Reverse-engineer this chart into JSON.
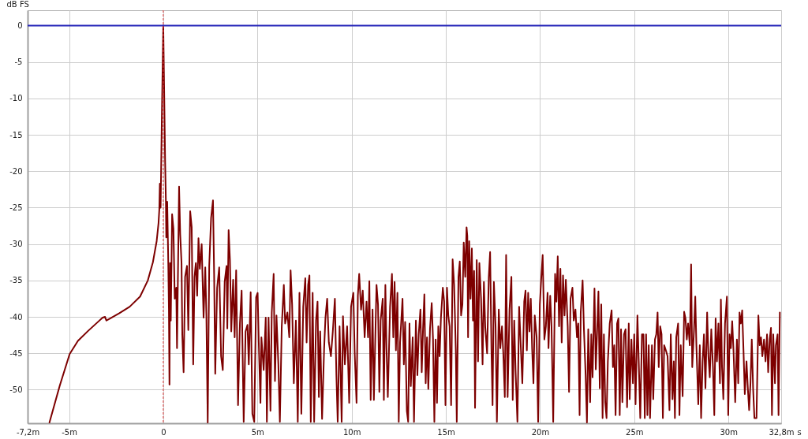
{
  "chart_data": {
    "type": "line",
    "xlabel": "s",
    "ylabel": "dB FS",
    "xlim": [
      -7.2,
      32.8
    ],
    "xticks": [
      {
        "value": -7.2,
        "label": "-7,2m"
      },
      {
        "value": -5,
        "label": "-5m"
      },
      0,
      {
        "value": 5,
        "label": "5m"
      },
      {
        "value": 10,
        "label": "10m"
      },
      {
        "value": 15,
        "label": "15m"
      },
      {
        "value": 20,
        "label": "20m"
      },
      {
        "value": 25,
        "label": "25m"
      },
      {
        "value": 30,
        "label": "30m"
      },
      {
        "value": 32.8,
        "label": "32,8m"
      }
    ],
    "ylim": [
      -54.6,
      2.1
    ],
    "yticks": [
      0,
      -5,
      -10,
      -15,
      -20,
      -25,
      -30,
      -35,
      -40,
      -45,
      -50
    ],
    "grid": true,
    "ref_lines": [
      {
        "axis": "y",
        "value": 0,
        "color": "#2323b8"
      },
      {
        "axis": "x",
        "value": 0,
        "color": "#e03c3c",
        "line_style": "dashed"
      }
    ],
    "series": [
      {
        "color": "#7d0000",
        "x": [
          -6.04,
          -5.49,
          -4.97,
          -4.53,
          -3.98,
          -3.43,
          -3.22,
          -3.09,
          -3.02,
          -2.88,
          -2.33,
          -1.78,
          -1.23,
          -0.82,
          -0.55,
          -0.35,
          -0.25,
          -0.21,
          -0.18,
          -0.14,
          -0.11,
          -0.07,
          0,
          0.07,
          0.1,
          0.14,
          0.16,
          0.21,
          0.26,
          0.3,
          0.33,
          0.36,
          0.4,
          0.47,
          0.54,
          0.61,
          0.69,
          0.73,
          0.84,
          0.9,
          0.97,
          1.01,
          1.08,
          1.16,
          1.26,
          1.33,
          1.43,
          1.51,
          1.59,
          1.66,
          1.73,
          1.8,
          1.87,
          1.94,
          2.04,
          2.14,
          2.23,
          2.29,
          2.36,
          2.44,
          2.54,
          2.64,
          2.7,
          2.76,
          2.86,
          2.97,
          3.07,
          3.16,
          3.26,
          3.36,
          3.4,
          3.47,
          3.54,
          3.61,
          3.71,
          3.79,
          3.87,
          3.97,
          4.07,
          4.16,
          4.27,
          4.37,
          4.47,
          4.54,
          4.64,
          4.73,
          4.83,
          4.93,
          5.01,
          5.07,
          5.16,
          5.21,
          5.33,
          5.44,
          5.5,
          5.59,
          5.69,
          5.76,
          5.86,
          5.93,
          6.01,
          6.11,
          6.19,
          6.29,
          6.4,
          6.47,
          6.59,
          6.69,
          6.76,
          6.84,
          6.93,
          7.04,
          7.14,
          7.23,
          7.33,
          7.43,
          7.54,
          7.61,
          7.69,
          7.76,
          7.83,
          7.93,
          8.01,
          8.11,
          8.19,
          8.26,
          8.33,
          8.43,
          8.54,
          8.61,
          8.7,
          8.79,
          8.9,
          9,
          9.11,
          9.19,
          9.26,
          9.36,
          9.47,
          9.54,
          9.64,
          9.76,
          9.87,
          9.97,
          10.09,
          10.16,
          10.26,
          10.33,
          10.4,
          10.5,
          10.59,
          10.69,
          10.79,
          10.87,
          10.94,
          11.01,
          11.11,
          11.18,
          11.32,
          11.4,
          11.47,
          11.54,
          11.65,
          11.71,
          11.79,
          11.85,
          11.92,
          12.04,
          12.14,
          12.21,
          12.28,
          12.35,
          12.43,
          12.5,
          12.57,
          12.7,
          12.77,
          12.84,
          12.93,
          13,
          13.07,
          13.14,
          13.24,
          13.31,
          13.41,
          13.49,
          13.56,
          13.65,
          13.72,
          13.79,
          13.86,
          13.93,
          14,
          14.07,
          14.16,
          14.25,
          14.32,
          14.39,
          14.46,
          14.53,
          14.6,
          14.67,
          14.74,
          14.84,
          14.91,
          14.98,
          15.06,
          15.13,
          15.2,
          15.28,
          15.36,
          15.44,
          15.53,
          15.58,
          15.67,
          15.74,
          15.81,
          15.88,
          15.95,
          16.03,
          16.1,
          16.14,
          16.18,
          16.24,
          16.31,
          16.38,
          16.44,
          16.5,
          16.55,
          16.64,
          16.71,
          16.78,
          16.87,
          16.95,
          17.02,
          17.09,
          17.19,
          17.28,
          17.35,
          17.42,
          17.48,
          17.55,
          17.64,
          17.71,
          17.81,
          17.89,
          17.98,
          18.05,
          18.13,
          18.2,
          18.28,
          18.38,
          18.48,
          18.55,
          18.63,
          18.7,
          18.8,
          18.89,
          18.97,
          19.06,
          19.16,
          19.23,
          19.3,
          19.37,
          19.44,
          19.51,
          19.58,
          19.65,
          19.72,
          19.82,
          19.9,
          19.99,
          20.06,
          20.14,
          20.23,
          20.31,
          20.4,
          20.45,
          20.54,
          20.61,
          20.7,
          20.8,
          20.87,
          20.94,
          21.01,
          21.08,
          21.15,
          21.22,
          21.3,
          21.37,
          21.47,
          21.54,
          21.62,
          21.72,
          21.79,
          21.88,
          21.96,
          22.03,
          22.1,
          22.16,
          22.26,
          22.33,
          22.42,
          22.49,
          22.56,
          22.66,
          22.72,
          22.79,
          22.89,
          22.96,
          23.03,
          23.1,
          23.17,
          23.25,
          23.32,
          23.39,
          23.46,
          23.53,
          23.6,
          23.7,
          23.8,
          23.87,
          23.94,
          24.01,
          24.09,
          24.16,
          24.23,
          24.3,
          24.37,
          24.46,
          24.54,
          24.62,
          24.71,
          24.76,
          24.85,
          24.93,
          25,
          25.07,
          25.17,
          25.24,
          25.32,
          25.41,
          25.49,
          25.56,
          25.63,
          25.7,
          25.77,
          25.84,
          25.94,
          26.01,
          26.1,
          26.17,
          26.24,
          26.3,
          26.38,
          26.45,
          26.52,
          26.59,
          26.68,
          26.77,
          26.87,
          26.94,
          27.03,
          27.1,
          27.16,
          27.23,
          27.33,
          27.4,
          27.47,
          27.57,
          27.65,
          27.72,
          27.79,
          27.86,
          27.95,
          28.02,
          28.08,
          28.17,
          28.24,
          28.3,
          28.4,
          28.48,
          28.55,
          28.63,
          28.7,
          28.78,
          28.87,
          28.94,
          29.01,
          29.09,
          29.18,
          29.25,
          29.32,
          29.39,
          29.47,
          29.55,
          29.6,
          29.66,
          29.73,
          29.82,
          29.92,
          29.99,
          30.06,
          30.13,
          30.2,
          30.27,
          30.36,
          30.45,
          30.52,
          30.59,
          30.66,
          30.73,
          30.8,
          30.87,
          30.96,
          31.03,
          31.1,
          31.17,
          31.24,
          31.31,
          31.38,
          31.49,
          31.59,
          31.66,
          31.73,
          31.8,
          31.89,
          31.97,
          32.05,
          32.11,
          32.19,
          32.26,
          32.31,
          32.38,
          32.47,
          32.52,
          32.61,
          32.66,
          32.73
        ],
        "values": [
          -54.5,
          -49.4,
          -45.1,
          -43.3,
          -41.9,
          -40.6,
          -40.1,
          -40.0,
          -40.5,
          -40.3,
          -39.5,
          -38.6,
          -37.2,
          -35.0,
          -32.5,
          -29.6,
          -27.1,
          -25.3,
          -21.7,
          -25.0,
          -19.2,
          -11.8,
          0,
          -13.1,
          -18.8,
          -24.2,
          -29.1,
          -24.2,
          -31.5,
          -39.0,
          -49.3,
          -32.6,
          -40.5,
          -25.9,
          -27.9,
          -37.5,
          -36.0,
          -44.3,
          -22.1,
          -28.7,
          -32.6,
          -42.4,
          -47.6,
          -34.5,
          -33.0,
          -41.8,
          -25.5,
          -27.7,
          -46.5,
          -34.5,
          -32.6,
          -37.1,
          -29.2,
          -33.4,
          -30.0,
          -40.1,
          -33.2,
          -39.8,
          -54.5,
          -33.0,
          -26.4,
          -24.0,
          -34.1,
          -47.8,
          -36.0,
          -33.2,
          -45.4,
          -47.3,
          -35.2,
          -33.0,
          -41.6,
          -28.1,
          -32.2,
          -42.0,
          -34.9,
          -42.8,
          -33.6,
          -52.1,
          -40.9,
          -36.4,
          -54.4,
          -42.0,
          -41.1,
          -46.5,
          -36.6,
          -53.3,
          -54.4,
          -37.3,
          -36.7,
          -43.5,
          -51.8,
          -42.8,
          -47.3,
          -40.1,
          -54.4,
          -40.1,
          -52.9,
          -39.4,
          -34.1,
          -48.8,
          -39.8,
          -46.5,
          -54.4,
          -41.3,
          -35.6,
          -40.9,
          -39.4,
          -42.8,
          -33.6,
          -38.3,
          -49.1,
          -40.5,
          -54.4,
          -36.7,
          -53.3,
          -38.6,
          -34.7,
          -43.5,
          -35.6,
          -34.3,
          -54.4,
          -36.7,
          -54.4,
          -40.5,
          -37.9,
          -51.0,
          -42.0,
          -54.0,
          -44.3,
          -40.1,
          -37.5,
          -43.5,
          -45.4,
          -42.0,
          -37.5,
          -48.0,
          -54.4,
          -41.3,
          -54.4,
          -39.9,
          -46.5,
          -41.3,
          -51.8,
          -38.6,
          -36.7,
          -44.8,
          -51.8,
          -37.1,
          -34.1,
          -39.0,
          -36.4,
          -42.8,
          -37.9,
          -42.8,
          -35.1,
          -51.4,
          -39.0,
          -51.4,
          -35.6,
          -38.3,
          -50.3,
          -40.5,
          -37.5,
          -51.4,
          -35.6,
          -44.3,
          -51.0,
          -38.6,
          -34.1,
          -42.8,
          -35.2,
          -44.6,
          -36.7,
          -54.4,
          -43.5,
          -37.5,
          -46.5,
          -40.7,
          -52.9,
          -54.4,
          -40.9,
          -49.5,
          -42.8,
          -54.4,
          -40.5,
          -48.0,
          -42.4,
          -39.0,
          -47.6,
          -41.6,
          -36.9,
          -49.1,
          -42.8,
          -49.9,
          -41.6,
          -38.1,
          -43.1,
          -54.4,
          -43.1,
          -51.8,
          -41.3,
          -45.4,
          -40.1,
          -36.0,
          -37.9,
          -52.1,
          -36.0,
          -39.8,
          -41.3,
          -52.1,
          -32.1,
          -35.6,
          -44.6,
          -54.4,
          -34.5,
          -32.4,
          -39.8,
          -38.3,
          -29.8,
          -34.5,
          -27.7,
          -28.9,
          -42.8,
          -29.6,
          -37.5,
          -30.6,
          -40.5,
          -33.7,
          -52.5,
          -32.2,
          -46.1,
          -32.6,
          -37.5,
          -46.5,
          -35.2,
          -41.3,
          -45.0,
          -34.5,
          -31.1,
          -44.3,
          -52.1,
          -35.2,
          -41.3,
          -54.4,
          -39.0,
          -44.3,
          -41.3,
          -45.0,
          -51.0,
          -31.5,
          -51.0,
          -39.0,
          -34.5,
          -51.4,
          -40.5,
          -47.3,
          -54.4,
          -38.6,
          -43.5,
          -49.1,
          -37.9,
          -36.4,
          -44.6,
          -36.7,
          -42.0,
          -37.5,
          -44.3,
          -49.1,
          -39.8,
          -42.8,
          -54.4,
          -38.3,
          -34.9,
          -31.5,
          -43.1,
          -41.3,
          -36.7,
          -44.3,
          -37.1,
          -41.3,
          -54.4,
          -34.1,
          -37.9,
          -31.7,
          -41.3,
          -33.4,
          -43.5,
          -34.3,
          -39.8,
          -34.9,
          -41.3,
          -50.3,
          -37.5,
          -36.0,
          -40.5,
          -39.0,
          -42.8,
          -40.9,
          -53.5,
          -39.4,
          -35.0,
          -41.7,
          -48.0,
          -54.5,
          -41.7,
          -51.7,
          -42.4,
          -48.3,
          -36.1,
          -47.2,
          -42.0,
          -36.5,
          -49.8,
          -38.3,
          -53.9,
          -42.4,
          -51.7,
          -53.9,
          -46.1,
          -40.9,
          -39.1,
          -46.9,
          -43.9,
          -53.5,
          -40.9,
          -40.2,
          -53.5,
          -41.7,
          -51.7,
          -42.4,
          -41.7,
          -52.4,
          -40.9,
          -51.3,
          -43.1,
          -49.1,
          -42.4,
          -52.0,
          -39.8,
          -46.1,
          -53.9,
          -42.4,
          -42.4,
          -53.9,
          -42.4,
          -53.5,
          -43.9,
          -53.9,
          -43.9,
          -51.3,
          -43.1,
          -42.4,
          -39.4,
          -46.9,
          -41.3,
          -42.4,
          -53.9,
          -43.9,
          -44.6,
          -45.4,
          -52.8,
          -42.4,
          -51.3,
          -46.1,
          -53.9,
          -42.8,
          -40.9,
          -53.5,
          -43.9,
          -50.9,
          -39.3,
          -40.2,
          -43.1,
          -40.9,
          -43.9,
          -32.8,
          -46.9,
          -42.0,
          -37.2,
          -43.9,
          -52.0,
          -43.9,
          -53.9,
          -46.1,
          -42.4,
          -49.8,
          -39.4,
          -45.4,
          -48.3,
          -41.7,
          -46.9,
          -53.5,
          -40.2,
          -46.1,
          -40.9,
          -49.1,
          -37.6,
          -46.9,
          -51.3,
          -40.9,
          -37.2,
          -53.5,
          -42.4,
          -44.3,
          -40.6,
          -44.6,
          -51.7,
          -43.1,
          -49.1,
          -39.4,
          -40.9,
          -39.1,
          -44.6,
          -50.6,
          -46.1,
          -49.8,
          -52.8,
          -49.1,
          -43.1,
          -49.8,
          -53.9,
          -53.9,
          -39.8,
          -43.9,
          -42.8,
          -45.4,
          -43.1,
          -46.1,
          -42.4,
          -47.6,
          -43.1,
          -41.5,
          -53.5,
          -42.4,
          -49.1,
          -43.9,
          -42.4,
          -53.5,
          -39.4
        ]
      }
    ]
  }
}
